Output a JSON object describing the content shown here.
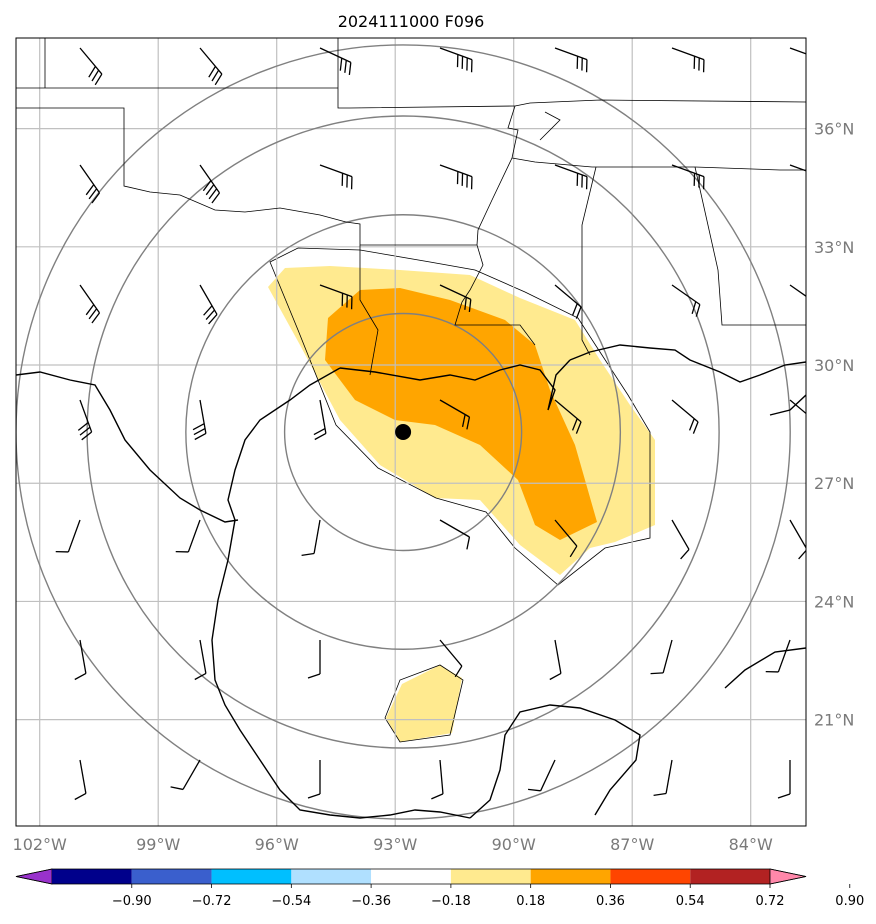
{
  "title": "2024111000 F096",
  "map": {
    "lon_range": [
      -102.6,
      -82.6
    ],
    "lat_range": [
      18.3,
      38.3
    ],
    "lon_ticks": [
      {
        "value": -102,
        "label": "102°W"
      },
      {
        "value": -99,
        "label": "99°W"
      },
      {
        "value": -96,
        "label": "96°W"
      },
      {
        "value": -93,
        "label": "93°W"
      },
      {
        "value": -90,
        "label": "90°W"
      },
      {
        "value": -87,
        "label": "87°W"
      },
      {
        "value": -84,
        "label": "84°W"
      }
    ],
    "lat_ticks": [
      {
        "value": 36,
        "label": "36°N"
      },
      {
        "value": 33,
        "label": "33°N"
      },
      {
        "value": 30,
        "label": "30°N"
      },
      {
        "value": 27,
        "label": "27°N"
      },
      {
        "value": 24,
        "label": "24°N"
      },
      {
        "value": 21,
        "label": "21°N"
      }
    ],
    "center": {
      "lon": -92.8,
      "lat": 28.3
    },
    "range_ring_radii_deg": [
      3.0,
      5.5,
      8.0,
      9.8
    ],
    "shading_colors": {
      "level_1": "#ffea8f",
      "level_2": "#ffa500"
    }
  },
  "colorbar": {
    "colors": [
      "#9932cc",
      "#00008b",
      "#3a5fcd",
      "#00bfff",
      "#b0e0ff",
      "#ffffff",
      "#ffea8f",
      "#ffa500",
      "#ff4500",
      "#b22222",
      "#ff88aa"
    ],
    "tick_labels": [
      "−0.90",
      "−0.72",
      "−0.54",
      "−0.36",
      "−0.18",
      "0.18",
      "0.36",
      "0.54",
      "0.72",
      "0.90"
    ]
  }
}
